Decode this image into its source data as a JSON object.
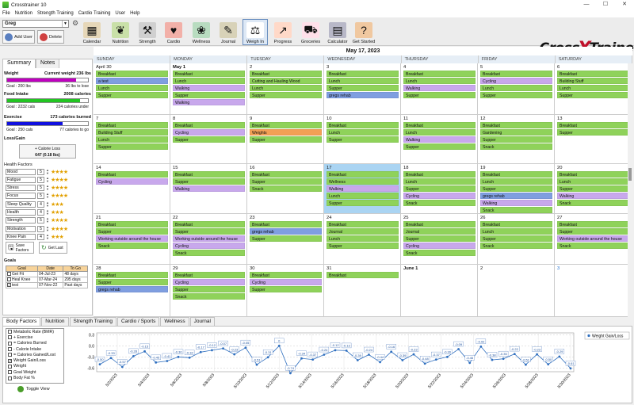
{
  "window": {
    "title": "Crosstrainer 10"
  },
  "menu": [
    "File",
    "Nutrition",
    "Strength Training",
    "Cardio Training",
    "User",
    "Help"
  ],
  "toolbar": {
    "user": "Greg",
    "add_user": "Add User",
    "delete": "Delete",
    "buttons": [
      {
        "label": "Calendar",
        "icon": "calendar-icon",
        "color": "#e6d7b8",
        "glyph": "▦"
      },
      {
        "label": "Nutrition",
        "icon": "nutrition-icon",
        "color": "#c9e0a8",
        "glyph": "❦"
      },
      {
        "label": "Strength",
        "icon": "strength-icon",
        "color": "#d0d0d0",
        "glyph": "⚒"
      },
      {
        "label": "Cardio",
        "icon": "cardio-icon",
        "color": "#f2b0a8",
        "glyph": "♥"
      },
      {
        "label": "Wellness",
        "icon": "wellness-icon",
        "color": "#b8dcc0",
        "glyph": "❀"
      },
      {
        "label": "Journal",
        "icon": "journal-icon",
        "color": "#d8d2b8",
        "glyph": "✎"
      },
      {
        "label": "Weigh In",
        "icon": "scale-icon",
        "color": "#ffffff",
        "glyph": "⚖"
      },
      {
        "label": "Progress",
        "icon": "progress-icon",
        "color": "#ffd9c8",
        "glyph": "↗"
      },
      {
        "label": "Groceries",
        "icon": "cart-icon",
        "color": "#ffe0ea",
        "glyph": "⛟"
      },
      {
        "label": "Calculator",
        "icon": "calculator-icon",
        "color": "#b8b8c8",
        "glyph": "▤"
      },
      {
        "label": "Get Started",
        "icon": "help-icon",
        "color": "#f0c8a0",
        "glyph": "?"
      }
    ],
    "logo_left": "Cross",
    "logo_x": "X",
    "logo_right": "Trainer"
  },
  "calendar": {
    "header": "May 17, 2023",
    "days": [
      "SUNDAY",
      "MONDAY",
      "TUESDAY",
      "WEDNESDAY",
      "THURSDAY",
      "FRIDAY",
      "SATURDAY"
    ],
    "weeks": [
      [
        {
          "d": "April 30",
          "ev": [
            [
              "Breakfast",
              "g"
            ],
            [
              "a test",
              "b"
            ],
            [
              "Lunch",
              "g"
            ],
            [
              "Supper",
              "g"
            ]
          ]
        },
        {
          "d": "May 1",
          "bold": true,
          "ev": [
            [
              "Breakfast",
              "g"
            ],
            [
              "Lunch",
              "g"
            ],
            [
              "Walking",
              "p"
            ],
            [
              "Supper",
              "g"
            ],
            [
              "Walking",
              "p"
            ]
          ]
        },
        {
          "d": "2",
          "ev": [
            [
              "Breakfast",
              "g"
            ],
            [
              "Cutting and Hauling Wood",
              "g"
            ],
            [
              "Lunch",
              "g"
            ],
            [
              "Supper",
              "g"
            ]
          ]
        },
        {
          "d": "3",
          "ev": [
            [
              "Breakfast",
              "g"
            ],
            [
              "Lunch",
              "g"
            ],
            [
              "Supper",
              "g"
            ],
            [
              "gregs rehab",
              "b"
            ]
          ]
        },
        {
          "d": "4",
          "ev": [
            [
              "Breakfast",
              "g"
            ],
            [
              "Lunch",
              "g"
            ],
            [
              "Walking",
              "p"
            ],
            [
              "Supper",
              "g"
            ]
          ]
        },
        {
          "d": "5",
          "ev": [
            [
              "Breakfast",
              "g"
            ],
            [
              "Cycling",
              "p"
            ],
            [
              "Lunch",
              "g"
            ],
            [
              "Supper",
              "g"
            ]
          ]
        },
        {
          "d": "6",
          "ev": [
            [
              "Breakfast",
              "g"
            ],
            [
              "Building Stuff",
              "g"
            ],
            [
              "Lunch",
              "g"
            ],
            [
              "Supper",
              "g"
            ]
          ]
        }
      ],
      [
        {
          "d": "7",
          "ev": [
            [
              "Breakfast",
              "g"
            ],
            [
              "Building Stuff",
              "g"
            ],
            [
              "Lunch",
              "g"
            ],
            [
              "Supper",
              "g"
            ]
          ]
        },
        {
          "d": "8",
          "ev": [
            [
              "Breakfast",
              "g"
            ],
            [
              "Cycling",
              "p"
            ],
            [
              "Supper",
              "g"
            ]
          ]
        },
        {
          "d": "9",
          "ev": [
            [
              "Breakfast",
              "g"
            ],
            [
              "Weights",
              "o"
            ],
            [
              "Supper",
              "g"
            ]
          ]
        },
        {
          "d": "10",
          "ev": [
            [
              "Breakfast",
              "g"
            ],
            [
              "Lunch",
              "g"
            ],
            [
              "Supper",
              "g"
            ]
          ]
        },
        {
          "d": "11",
          "ev": [
            [
              "Breakfast",
              "g"
            ],
            [
              "Lunch",
              "g"
            ],
            [
              "Walking",
              "p"
            ],
            [
              "Supper",
              "g"
            ]
          ]
        },
        {
          "d": "12",
          "ev": [
            [
              "Breakfast",
              "g"
            ],
            [
              "Gardening",
              "g"
            ],
            [
              "Supper",
              "g"
            ],
            [
              "Snack",
              "g"
            ]
          ]
        },
        {
          "d": "13",
          "ev": [
            [
              "Breakfast",
              "g"
            ],
            [
              "Supper",
              "g"
            ]
          ]
        }
      ],
      [
        {
          "d": "14",
          "ev": [
            [
              "Breakfast",
              "g"
            ],
            [
              "Cycling",
              "p"
            ]
          ]
        },
        {
          "d": "15",
          "ev": [
            [
              "Breakfast",
              "g"
            ],
            [
              "Supper",
              "g"
            ],
            [
              "Walking",
              "p"
            ]
          ]
        },
        {
          "d": "16",
          "ev": [
            [
              "Breakfast",
              "g"
            ],
            [
              "Supper",
              "g"
            ],
            [
              "Snack",
              "g"
            ]
          ]
        },
        {
          "d": "17",
          "today": true,
          "ev": [
            [
              "Breakfast",
              "g"
            ],
            [
              "Wellness",
              "g"
            ],
            [
              "Walking",
              "p"
            ],
            [
              "Lunch",
              "g"
            ],
            [
              "Supper",
              "g"
            ]
          ]
        },
        {
          "d": "18",
          "ev": [
            [
              "Breakfast",
              "g"
            ],
            [
              "Lunch",
              "g"
            ],
            [
              "Supper",
              "g"
            ],
            [
              "Cycling",
              "p"
            ],
            [
              "Snack",
              "g"
            ]
          ]
        },
        {
          "d": "19",
          "ev": [
            [
              "Breakfast",
              "g"
            ],
            [
              "Lunch",
              "g"
            ],
            [
              "Supper",
              "g"
            ],
            [
              "gregs rehab",
              "b"
            ],
            [
              "Walking",
              "p"
            ],
            [
              "Snack",
              "g"
            ]
          ]
        },
        {
          "d": "20",
          "ev": [
            [
              "Breakfast",
              "g"
            ],
            [
              "Lunch",
              "g"
            ],
            [
              "Supper",
              "g"
            ],
            [
              "Walking",
              "p"
            ],
            [
              "Snack",
              "g"
            ]
          ]
        }
      ],
      [
        {
          "d": "21",
          "ev": [
            [
              "Breakfast",
              "g"
            ],
            [
              "Supper",
              "g"
            ],
            [
              "Working outside around the house",
              "p"
            ],
            [
              "Snack",
              "g"
            ]
          ]
        },
        {
          "d": "22",
          "ev": [
            [
              "Breakfast",
              "g"
            ],
            [
              "Supper",
              "g"
            ],
            [
              "Working outside around the house",
              "p"
            ],
            [
              "Cycling",
              "p"
            ],
            [
              "Snack",
              "g"
            ]
          ]
        },
        {
          "d": "23",
          "ev": [
            [
              "Breakfast",
              "g"
            ],
            [
              "gregs rehab",
              "b"
            ],
            [
              "Supper",
              "g"
            ]
          ]
        },
        {
          "d": "24",
          "ev": [
            [
              "Breakfast",
              "g"
            ],
            [
              "Journal",
              "g"
            ],
            [
              "Lunch",
              "g"
            ],
            [
              "Supper",
              "g"
            ]
          ]
        },
        {
          "d": "25",
          "ev": [
            [
              "Breakfast",
              "g"
            ],
            [
              "Journal",
              "g"
            ],
            [
              "Supper",
              "g"
            ],
            [
              "Cycling",
              "p"
            ],
            [
              "Snack",
              "g"
            ]
          ]
        },
        {
          "d": "26",
          "ev": [
            [
              "Breakfast",
              "g"
            ],
            [
              "Lunch",
              "g"
            ],
            [
              "Supper",
              "g"
            ],
            [
              "Snack",
              "g"
            ]
          ]
        },
        {
          "d": "27",
          "ev": [
            [
              "Breakfast",
              "g"
            ],
            [
              "Supper",
              "g"
            ],
            [
              "Working outside around the house",
              "p"
            ],
            [
              "Snack",
              "g"
            ]
          ]
        }
      ],
      [
        {
          "d": "28",
          "ev": [
            [
              "Breakfast",
              "g"
            ],
            [
              "Supper",
              "g"
            ],
            [
              "gregs rehab",
              "b"
            ]
          ]
        },
        {
          "d": "29",
          "ev": [
            [
              "Breakfast",
              "g"
            ],
            [
              "Cycling",
              "p"
            ],
            [
              "Supper",
              "g"
            ],
            [
              "Snack",
              "g"
            ]
          ]
        },
        {
          "d": "30",
          "ev": [
            [
              "Breakfast",
              "g"
            ],
            [
              "Cycling",
              "p"
            ],
            [
              "Supper",
              "g"
            ]
          ]
        },
        {
          "d": "31",
          "ev": [
            [
              "Breakfast",
              "g"
            ]
          ]
        },
        {
          "d": "June 1",
          "bold": true,
          "ev": []
        },
        {
          "d": "2",
          "ev": []
        },
        {
          "d": "3",
          "blue": true,
          "ev": []
        }
      ]
    ]
  },
  "summary": {
    "tab_summary": "Summary",
    "tab_notes": "Notes",
    "weight_label": "Weight",
    "weight_value": "Current weight 236 lbs",
    "weight_goal": "Goal : 200 lbs",
    "weight_remaining": "36 lbs to lose",
    "weight_fill": 0.85,
    "weight_color": "#c000c0",
    "food_label": "Food Intake",
    "food_value": "2008 calories",
    "food_goal": "Goal : 2232 cals",
    "food_remaining": "224 calories under",
    "food_fill": 0.9,
    "food_color": "#22c522",
    "exercise_label": "Exercise",
    "exercise_value": "173 calories burned",
    "exercise_goal": "Goal : 250 cals",
    "exercise_remaining": "77 calories to go",
    "exercise_fill": 0.69,
    "exercise_color": "#1010e0",
    "loss_label": "Loss/Gain",
    "loss_line1": "+ Calorie Loss",
    "loss_line2": "647 (0.18 lbs)",
    "health_label": "Health Factors",
    "factors": [
      {
        "n": "Mood",
        "v": "5",
        "s": "★★★★"
      },
      {
        "n": "Fatigue",
        "v": "5",
        "s": "★★★★"
      },
      {
        "n": "Stress",
        "v": "5",
        "s": "★★★★"
      },
      {
        "n": "Focus",
        "v": "5",
        "s": "★★★★"
      },
      {
        "n": "Sleep Quality",
        "v": "4",
        "s": "★★★"
      },
      {
        "n": "Health",
        "v": "4",
        "s": "★★★"
      },
      {
        "n": "Strength",
        "v": "5",
        "s": "★★★★"
      },
      {
        "n": "Motivation",
        "v": "5",
        "s": "★★★★"
      },
      {
        "n": "Knee Pain",
        "v": "4",
        "s": "★★★"
      }
    ],
    "save_factors": "Save Factors",
    "get_last": "Get Last",
    "goals_label": "Goals",
    "goal_headers": [
      "Goal",
      "Date",
      "To Go"
    ],
    "goals": [
      [
        "Get Fit",
        "04-Jul-23",
        "48 days"
      ],
      [
        "Heal Knee",
        "07-Mar-24",
        "295 days"
      ],
      [
        "test",
        "07-Nov-22",
        "Past days"
      ]
    ]
  },
  "bottom": {
    "tabs": [
      "Body Factors",
      "Nutrition",
      "Strength Training",
      "Cardio / Sports",
      "Wellness",
      "Journal"
    ],
    "checklist": [
      {
        "t": "Metabolic Rate (BMR)",
        "c": false
      },
      {
        "t": "+ Exercise",
        "c": false
      },
      {
        "t": "= Calories Burned",
        "c": false
      },
      {
        "t": "- Calorie Intake",
        "c": false
      },
      {
        "t": "= Calories Gained/Lost",
        "c": false
      },
      {
        "t": "Weight Gain/Loss",
        "c": true
      },
      {
        "t": "Weight",
        "c": false
      },
      {
        "t": "Goal Weight",
        "c": false
      },
      {
        "t": "Body Fat %",
        "c": false
      }
    ],
    "toggle": "Toggle View"
  },
  "chart_data": {
    "type": "line",
    "legend": "Weight Gain/Loss",
    "legend_position": "top-right",
    "series_color": "#2f6fbf",
    "yticks": [
      "0.3",
      "0.0",
      "-0.3",
      "-0.6"
    ],
    "ylim": [
      -0.7,
      0.35
    ],
    "xticks": [
      "5/2/2023",
      "5/4/2023",
      "5/6/2023",
      "5/8/2023",
      "5/10/2023",
      "5/12/2023",
      "5/14/2023",
      "5/16/2023",
      "5/18/2023",
      "5/20/2023",
      "5/22/2023",
      "5/24/2023",
      "5/26/2023",
      "5/28/2023",
      "5/30/2023"
    ],
    "values": [
      -0.5,
      -0.33,
      -0.57,
      -0.28,
      -0.15,
      -0.45,
      -0.41,
      -0.3,
      -0.32,
      -0.17,
      -0.12,
      -0.07,
      -0.23,
      -0.05,
      -0.51,
      -0.31,
      0,
      -0.74,
      -0.34,
      -0.37,
      -0.24,
      -0.12,
      -0.13,
      -0.39,
      -0.24,
      -0.44,
      -0.16,
      -0.39,
      -0.23,
      -0.48,
      -0.37,
      -0.3,
      -0.09,
      -0.46,
      -0.02,
      -0.38,
      -0.35,
      -0.22,
      -0.51,
      -0.23,
      -0.5,
      -0.29,
      -0.61
    ]
  }
}
